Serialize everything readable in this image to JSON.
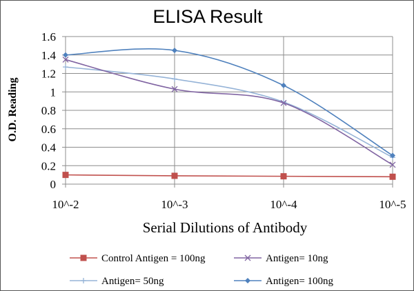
{
  "chart_data": {
    "type": "line",
    "title": "ELISA Result",
    "xlabel": "Serial Dilutions  of Antibody",
    "ylabel": "O.D. Reading",
    "categories": [
      "10^-2",
      "10^-3",
      "10^-4",
      "10^-5"
    ],
    "ylim": [
      0,
      1.6
    ],
    "yticks": [
      "0",
      "0.2",
      "0.4",
      "0.6",
      "0.8",
      "1",
      "1.2",
      "1.4",
      "1.6"
    ],
    "grid": true,
    "legend_position": "bottom",
    "series": [
      {
        "name": "Control Antigen = 100ng",
        "values": [
          0.1,
          0.09,
          0.085,
          0.08
        ],
        "color": "#c0504d",
        "marker": "square",
        "smooth": false
      },
      {
        "name": "Antigen= 10ng",
        "values": [
          1.35,
          1.03,
          0.88,
          0.21
        ],
        "color": "#8064a2",
        "marker": "x",
        "smooth": true
      },
      {
        "name": "Antigen= 50ng",
        "values": [
          1.27,
          1.14,
          0.89,
          0.29
        ],
        "color": "#95b3d7",
        "marker": "plus",
        "smooth": true
      },
      {
        "name": "Antigen= 100ng",
        "values": [
          1.4,
          1.45,
          1.07,
          0.31
        ],
        "color": "#4f81bd",
        "marker": "diamond",
        "smooth": true
      }
    ]
  }
}
